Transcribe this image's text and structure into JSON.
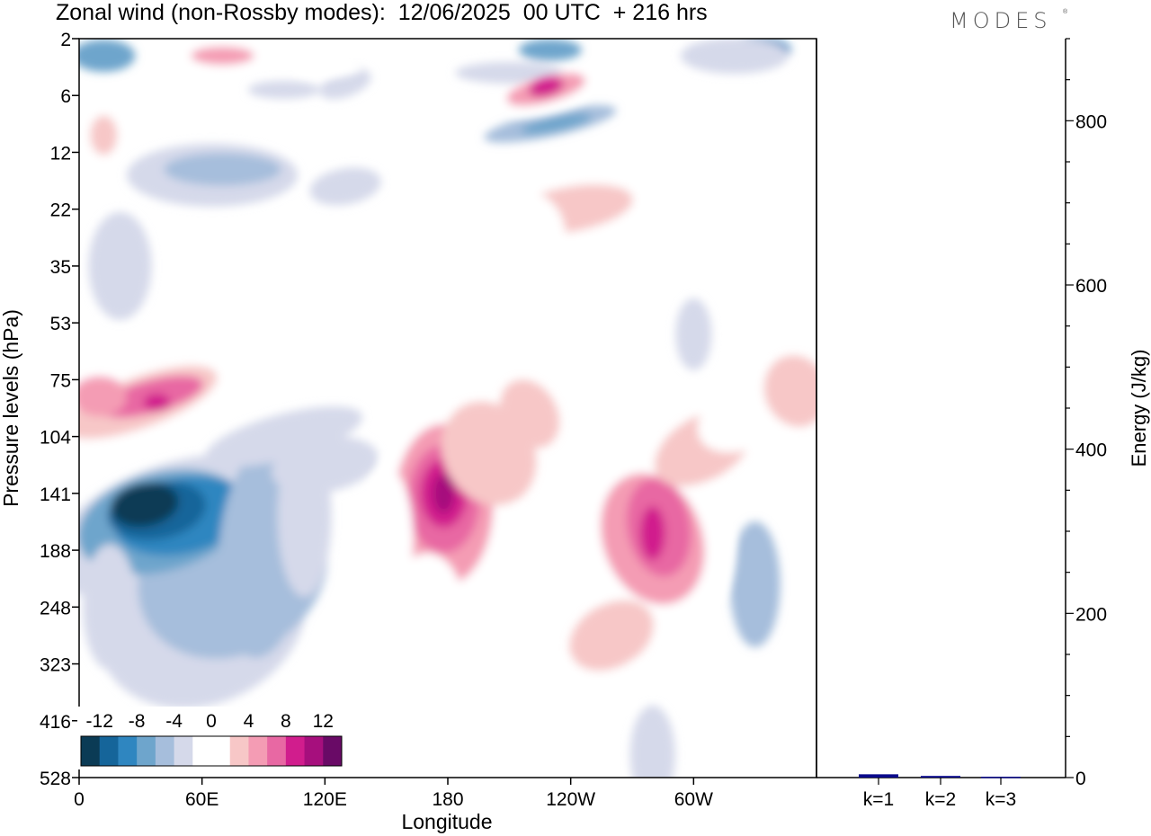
{
  "title": "Zonal wind (non-Rossby modes):  12/06/2025  00 UTC  + 216 hrs",
  "brand": "MODES",
  "brand_mark": "®",
  "chart_data": [
    {
      "type": "heatmap",
      "title": "Zonal wind (non-Rossby modes):  12/06/2025  00 UTC  + 216 hrs",
      "xlabel": "Longitude",
      "ylabel": "Pressure levels (hPa)",
      "x_ticks": [
        "0",
        "60E",
        "120E",
        "180",
        "120W",
        "60W"
      ],
      "x_tick_degrees": [
        0,
        60,
        120,
        180,
        240,
        300
      ],
      "xlim": [
        0,
        360
      ],
      "y_ticks": [
        "2",
        "6",
        "12",
        "22",
        "35",
        "53",
        "75",
        "104",
        "141",
        "188",
        "248",
        "323",
        "416",
        "528"
      ],
      "y_scale": "model levels (log-like, 2 at top to 528 at bottom)",
      "colorbar": {
        "tick_labels": [
          "-12",
          "-8",
          "-4",
          "0",
          "4",
          "8",
          "12"
        ],
        "levels": [
          -14,
          -12,
          -10,
          -8,
          -6,
          -4,
          -2,
          2,
          4,
          6,
          8,
          10,
          12,
          14
        ],
        "colors": [
          "#0b3b55",
          "#15659a",
          "#2f86c0",
          "#6ea5cc",
          "#a6bedc",
          "#d5d9ea",
          "#ffffff",
          "#ffffff",
          "#f7c7c7",
          "#f49cb4",
          "#e868a3",
          "#d11d8d",
          "#a60f7d",
          "#690a66"
        ],
        "placement": "bottom-left, inside plot"
      },
      "features": [
        {
          "label": "strong easterly core",
          "lon": 40,
          "level": "141",
          "value": -14
        },
        {
          "label": "westerly core",
          "lon": 178,
          "level": "141",
          "value": 13
        },
        {
          "label": "westerly core",
          "lon": 280,
          "level": "188",
          "value": 10
        },
        {
          "label": "westerly band",
          "lon": 30,
          "level": "75",
          "value": 9
        },
        {
          "label": "westerly patch",
          "lon": 230,
          "level": "6",
          "value": 10
        },
        {
          "label": "easterly patch",
          "lon": 230,
          "level": "12",
          "value": -8
        }
      ]
    },
    {
      "type": "bar",
      "ylabel": "Energy (J/kg)",
      "categories": [
        "k=1",
        "k=2",
        "k=3"
      ],
      "values": [
        4,
        2,
        1
      ],
      "ylim": [
        0,
        900
      ],
      "y_ticks": [
        "0",
        "200",
        "400",
        "600",
        "800"
      ],
      "bar_color": "#0a0a8c"
    }
  ]
}
